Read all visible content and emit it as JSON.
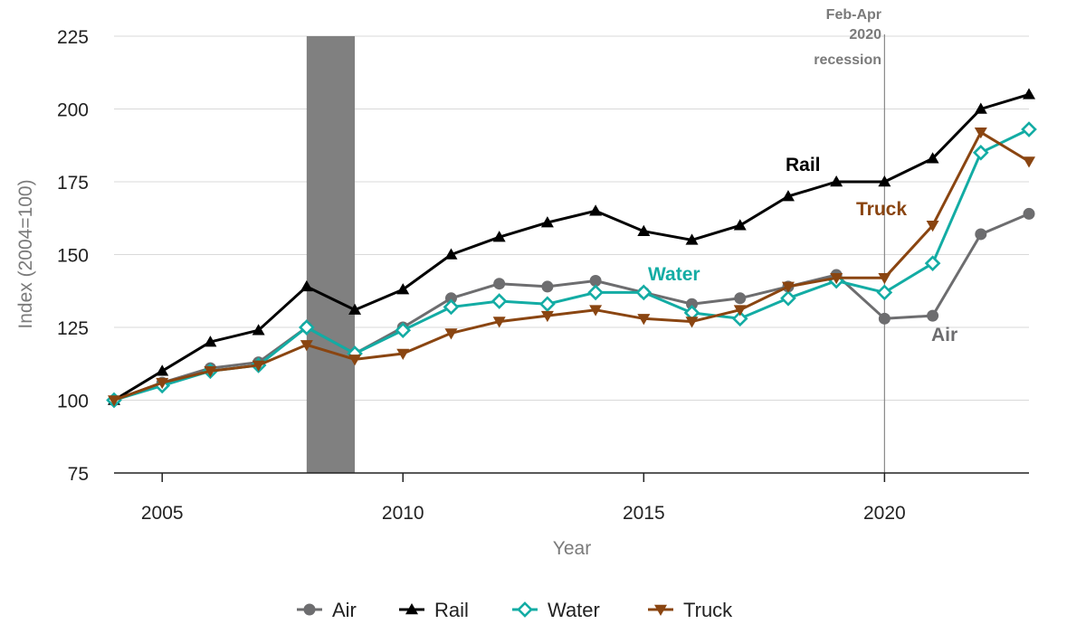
{
  "chart_data": {
    "type": "line",
    "xlabel": "Year",
    "ylabel": "Index (2004=100)",
    "xlim": [
      2004,
      2023
    ],
    "ylim": [
      75,
      225
    ],
    "x_ticks": [
      "2005",
      "2010",
      "2015",
      "2020"
    ],
    "y_ticks": [
      "75",
      "100",
      "125",
      "150",
      "175",
      "200",
      "225"
    ],
    "grid": "horizontal",
    "legend": "bottom",
    "x": [
      2004,
      2005,
      2006,
      2007,
      2008,
      2009,
      2010,
      2011,
      2012,
      2013,
      2014,
      2015,
      2016,
      2017,
      2018,
      2019,
      2020,
      2021,
      2022,
      2023
    ],
    "series": [
      {
        "name": "Air",
        "color": "#6d6d6f",
        "marker": "circle",
        "values": [
          100,
          106,
          111,
          113,
          125,
          116,
          125,
          135,
          140,
          139,
          141,
          137,
          133,
          135,
          139,
          143,
          128,
          129,
          157,
          164
        ]
      },
      {
        "name": "Rail",
        "color": "#000000",
        "marker": "triangle-up",
        "values": [
          100,
          110,
          120,
          124,
          139,
          131,
          138,
          150,
          156,
          161,
          165,
          158,
          155,
          160,
          170,
          175,
          175,
          183,
          200,
          205
        ]
      },
      {
        "name": "Water",
        "color": "#13aca4",
        "marker": "diamond-open",
        "values": [
          100,
          105,
          110,
          112,
          125,
          116,
          124,
          132,
          134,
          133,
          137,
          137,
          130,
          128,
          135,
          141,
          137,
          147,
          185,
          193
        ]
      },
      {
        "name": "Truck",
        "color": "#8a4511",
        "marker": "triangle-down",
        "values": [
          100,
          106,
          110,
          112,
          119,
          114,
          116,
          123,
          127,
          129,
          131,
          128,
          127,
          131,
          139,
          142,
          142,
          160,
          192,
          182
        ]
      }
    ],
    "series_labels": [
      "Rail",
      "Truck",
      "Water",
      "Air"
    ],
    "recession_shading": {
      "start": 2008,
      "end": 2009
    },
    "recession_marker": {
      "x": 2020,
      "label": [
        "Feb-Apr",
        "2020",
        "recession"
      ]
    }
  }
}
